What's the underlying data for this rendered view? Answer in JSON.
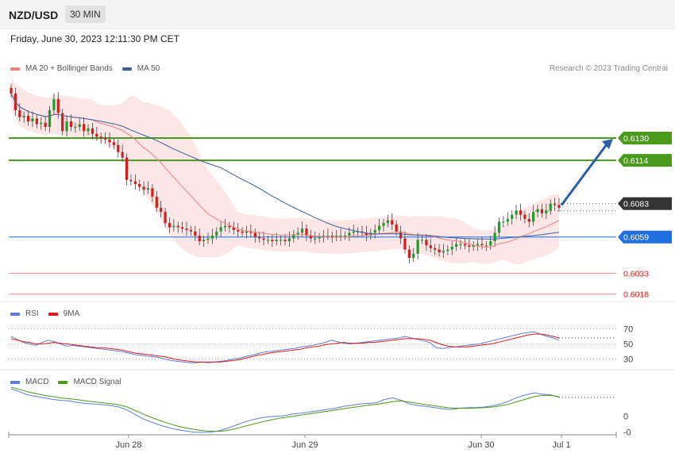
{
  "header": {
    "symbol": "NZD/USD",
    "timeframe": "30 MIN",
    "datetime": "Friday, June 30, 2023 12:11:30 PM CET"
  },
  "legend_main": {
    "ma20_label": "MA 20 + Bollinger Bands",
    "ma50_label": "MA 50",
    "ma20_color": "#f08080",
    "ma50_color": "#3a5fa0"
  },
  "copyright": "Research © 2023 Trading Central",
  "legend_rsi": {
    "rsi_label": "RSI",
    "ma_label": "9MA",
    "rsi_color": "#5b7fd8",
    "ma_color": "#e0191c"
  },
  "legend_macd": {
    "macd_label": "MACD",
    "signal_label": "MACD Signal",
    "macd_color": "#5b7fd8",
    "signal_color": "#4a9a1c"
  },
  "chart_data": [
    {
      "type": "candlestick",
      "title": "NZD/USD 30 MIN",
      "x_ticks": [
        "Jun 28",
        "Jun 29",
        "Jun 30",
        "Jul 1"
      ],
      "ylim": [
        0.6015,
        0.6175
      ],
      "ohlc_approx_close": [
        0.6162,
        0.615,
        0.6145,
        0.6146,
        0.6142,
        0.6144,
        0.614,
        0.6141,
        0.6138,
        0.615,
        0.6158,
        0.6148,
        0.6135,
        0.6142,
        0.6138,
        0.6138,
        0.614,
        0.6135,
        0.6137,
        0.6133,
        0.6131,
        0.613,
        0.6129,
        0.6127,
        0.6125,
        0.612,
        0.6116,
        0.61,
        0.6099,
        0.6097,
        0.6095,
        0.6093,
        0.6094,
        0.6088,
        0.608,
        0.6077,
        0.6069,
        0.6066,
        0.6067,
        0.6066,
        0.6065,
        0.6064,
        0.6063,
        0.606,
        0.6056,
        0.6057,
        0.6058,
        0.606,
        0.6063,
        0.6066,
        0.6067,
        0.6066,
        0.6064,
        0.6063,
        0.6062,
        0.6063,
        0.6062,
        0.6059,
        0.6058,
        0.6057,
        0.6057,
        0.6056,
        0.6057,
        0.6057,
        0.6056,
        0.6058,
        0.6061,
        0.6062,
        0.6065,
        0.606,
        0.6058,
        0.6058,
        0.6059,
        0.606,
        0.606,
        0.6059,
        0.606,
        0.606,
        0.606,
        0.6062,
        0.6063,
        0.6063,
        0.6062,
        0.606,
        0.6062,
        0.6064,
        0.6067,
        0.6069,
        0.6071,
        0.6068,
        0.6063,
        0.6058,
        0.605,
        0.6044,
        0.6047,
        0.6057,
        0.6057,
        0.6053,
        0.6051,
        0.605,
        0.6048,
        0.6049,
        0.605,
        0.6052,
        0.6054,
        0.6054,
        0.6053,
        0.6052,
        0.6053,
        0.6054,
        0.6053,
        0.6053,
        0.6056,
        0.6062,
        0.607,
        0.607,
        0.6072,
        0.6075,
        0.6078,
        0.6075,
        0.6072,
        0.607,
        0.6077,
        0.6079,
        0.6076,
        0.6078,
        0.6083,
        0.6082,
        0.608
      ],
      "indicators": [
        "MA 20 + Bollinger Bands",
        "MA 50"
      ],
      "levels": [
        {
          "value": "0.6130",
          "kind": "resistance"
        },
        {
          "value": "0.6114",
          "kind": "resistance"
        },
        {
          "value": "0.6083",
          "kind": "current"
        },
        {
          "value": "0.6059",
          "kind": "pivot"
        },
        {
          "value": "0.6033",
          "kind": "support"
        },
        {
          "value": "0.6018",
          "kind": "support"
        }
      ],
      "target_arrow": {
        "from": 0.6083,
        "to": 0.613
      }
    },
    {
      "type": "line",
      "title": "RSI",
      "y_ticks": [
        "70",
        "50",
        "30"
      ],
      "ylim": [
        20,
        80
      ],
      "series": [
        {
          "name": "RSI",
          "values": [
            60,
            56,
            52,
            50,
            48,
            52,
            55,
            53,
            50,
            47,
            48,
            47,
            46,
            45,
            44,
            43,
            42,
            41,
            40,
            38,
            36,
            35,
            34,
            33,
            32,
            30,
            28,
            27,
            26,
            25,
            25,
            26,
            25,
            26,
            27,
            28,
            30,
            31,
            33,
            35,
            37,
            39,
            40,
            41,
            42,
            43,
            44,
            46,
            47,
            48,
            50,
            52,
            55,
            53,
            51,
            50,
            51,
            52,
            53,
            54,
            55,
            56,
            57,
            58,
            60,
            58,
            56,
            54,
            52,
            45,
            44,
            45,
            46,
            47,
            48,
            49,
            50,
            52,
            54,
            56,
            58,
            60,
            62,
            64,
            65,
            66,
            63,
            60,
            58,
            55
          ]
        },
        {
          "name": "9MA",
          "values": [
            57,
            55,
            53,
            52,
            50,
            50,
            51,
            52,
            51,
            50,
            49,
            48,
            47,
            46,
            45,
            45,
            44,
            43,
            42,
            40,
            38,
            37,
            36,
            35,
            34,
            33,
            31,
            29,
            28,
            27,
            26,
            26,
            26,
            26,
            26,
            27,
            28,
            29,
            31,
            33,
            35,
            36,
            38,
            39,
            40,
            41,
            42,
            43,
            45,
            46,
            47,
            49,
            50,
            51,
            52,
            51,
            51,
            51,
            52,
            52,
            53,
            54,
            55,
            56,
            57,
            57,
            57,
            56,
            55,
            52,
            49,
            47,
            46,
            46,
            46,
            47,
            48,
            49,
            50,
            52,
            54,
            56,
            58,
            60,
            62,
            63,
            63,
            62,
            60,
            58
          ]
        }
      ]
    },
    {
      "type": "line",
      "title": "MACD",
      "y_ticks": [
        "0",
        "-0"
      ],
      "series": [
        {
          "name": "MACD",
          "values": [
            0.9,
            0.8,
            0.7,
            0.65,
            0.6,
            0.55,
            0.52,
            0.5,
            0.45,
            0.42,
            0.4,
            0.38,
            0.35,
            0.3,
            0.2,
            0.05,
            -0.1,
            -0.2,
            -0.3,
            -0.38,
            -0.44,
            -0.48,
            -0.52,
            -0.53,
            -0.52,
            -0.48,
            -0.4,
            -0.3,
            -0.2,
            -0.12,
            -0.06,
            -0.02,
            0.0,
            0.02,
            0.08,
            0.1,
            0.14,
            0.18,
            0.22,
            0.26,
            0.32,
            0.36,
            0.4,
            0.42,
            0.44,
            0.55,
            0.6,
            0.52,
            0.4,
            0.35,
            0.32,
            0.28,
            0.24,
            0.22,
            0.26,
            0.28,
            0.28,
            0.3,
            0.34,
            0.4,
            0.5,
            0.62,
            0.7,
            0.76,
            0.72,
            0.7,
            0.62
          ]
        },
        {
          "name": "MACD Signal",
          "values": [
            0.95,
            0.88,
            0.8,
            0.74,
            0.68,
            0.64,
            0.6,
            0.57,
            0.54,
            0.5,
            0.47,
            0.44,
            0.41,
            0.37,
            0.3,
            0.18,
            0.06,
            -0.05,
            -0.15,
            -0.24,
            -0.32,
            -0.38,
            -0.43,
            -0.47,
            -0.49,
            -0.5,
            -0.47,
            -0.41,
            -0.34,
            -0.27,
            -0.2,
            -0.14,
            -0.08,
            -0.04,
            0.0,
            0.04,
            0.08,
            0.12,
            0.16,
            0.2,
            0.24,
            0.28,
            0.32,
            0.36,
            0.39,
            0.43,
            0.48,
            0.5,
            0.46,
            0.42,
            0.38,
            0.34,
            0.3,
            0.27,
            0.26,
            0.26,
            0.27,
            0.28,
            0.3,
            0.34,
            0.4,
            0.48,
            0.56,
            0.64,
            0.68,
            0.68,
            0.64
          ]
        }
      ]
    }
  ]
}
